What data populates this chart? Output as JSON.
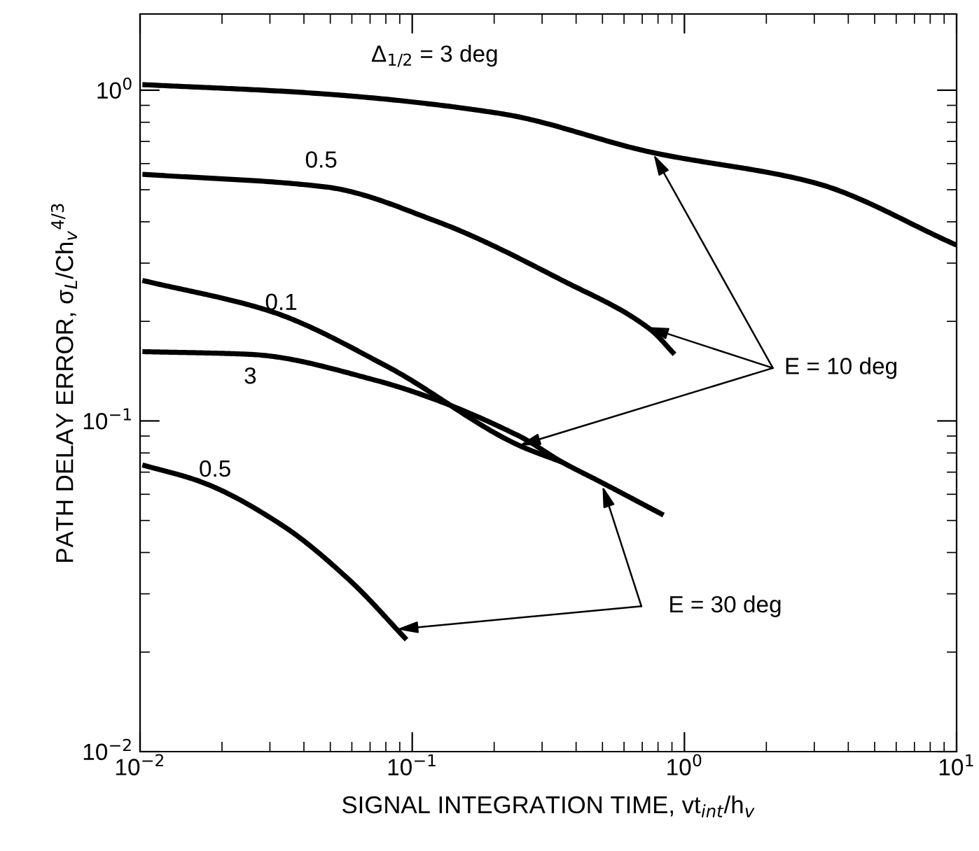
{
  "chart_data": {
    "type": "line",
    "xlabel": "SIGNAL INTEGRATION TIME, vt$_{int}$/h$_{v}$",
    "ylabel": "PATH DELAY ERROR, σ$_{L}$/Ch$_{v}$$^{4/3}$",
    "log": "xy",
    "xlim": [
      0.01,
      10
    ],
    "ylim": [
      0.01,
      1.7
    ],
    "xticks": [
      {
        "value": 0.01,
        "label": "10$^{−2}$"
      },
      {
        "value": 0.1,
        "label": "10$^{−1}$"
      },
      {
        "value": 1,
        "label": "10$^{0}$"
      },
      {
        "value": 10,
        "label": "10$^{1}$"
      }
    ],
    "yticks": [
      {
        "value": 0.01,
        "label": "10$^{−2}$"
      },
      {
        "value": 0.1,
        "label": "10$^{−1}$"
      },
      {
        "value": 1,
        "label": "10$^{0}$"
      }
    ],
    "grid": false,
    "legend": false,
    "marker": "none",
    "line_style": "solid",
    "series": [
      {
        "color": "#000000",
        "x": [
          0.0102,
          0.043,
          0.211,
          0.75,
          2.98,
          10
        ],
        "values": [
          1.04,
          0.98,
          0.85,
          0.65,
          0.526,
          0.34
        ]
      },
      {
        "color": "#000000",
        "x": [
          0.0102,
          0.048,
          0.124,
          0.356,
          0.75,
          0.92
        ],
        "values": [
          0.557,
          0.51,
          0.4,
          0.266,
          0.189,
          0.159
        ]
      },
      {
        "color": "#000000",
        "x": [
          0.0102,
          0.0299,
          0.081,
          0.247,
          0.356
        ],
        "values": [
          0.266,
          0.215,
          0.146,
          0.0843,
          0.075
        ]
      },
      {
        "color": "#000000",
        "x": [
          0.0102,
          0.0252,
          0.0726,
          0.247,
          0.356,
          0.49,
          0.838
        ],
        "values": [
          0.162,
          0.159,
          0.133,
          0.09,
          0.075,
          0.0655,
          0.0519
        ]
      },
      {
        "color": "#000000",
        "x": [
          0.0102,
          0.0167,
          0.0332,
          0.0593,
          0.0953
        ],
        "values": [
          0.0736,
          0.0655,
          0.0484,
          0.0328,
          0.0218
        ]
      }
    ],
    "annotations": [
      "Δ$_{1/2}$ = 3 deg",
      "0.5",
      "0.1",
      "3",
      "0.5",
      {
        "text": "E = 10 deg",
        "x": 0.77,
        "y": 0.64
      },
      {
        "text": "E = 30 deg",
        "x": 0.5,
        "y": 0.0636
      }
    ]
  }
}
